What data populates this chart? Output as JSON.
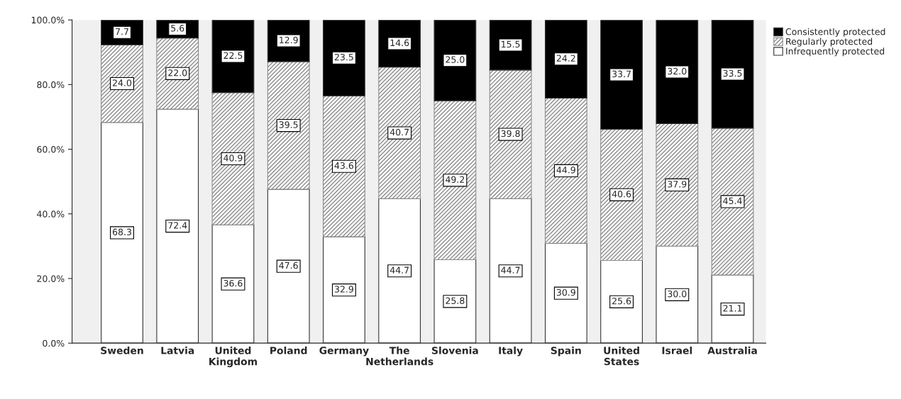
{
  "chart_data": {
    "type": "bar",
    "stacked": true,
    "legend": "top right",
    "grid": false,
    "categories": [
      "Sweden",
      "Latvia",
      "United\nKingdom",
      "Poland",
      "Germany",
      "The\nNetherlands",
      "Slovenia",
      "Italy",
      "Spain",
      "United\nStates",
      "Israel",
      "Australia"
    ],
    "series": [
      {
        "name": "Infrequently protected",
        "color": "#ffffff",
        "values": [
          68.3,
          72.4,
          36.6,
          47.6,
          32.9,
          44.7,
          25.8,
          44.7,
          30.9,
          25.6,
          30.0,
          21.1
        ],
        "value_labels": [
          "68.3",
          "72.4",
          "36.6",
          "47.6",
          "32.9",
          "44.7",
          "25.8",
          "44.7",
          "30.9",
          "25.6",
          "30.0",
          "21.1"
        ]
      },
      {
        "name": "Regularly protected",
        "color": "#8c8c8c",
        "values": [
          24.0,
          22.0,
          40.9,
          39.5,
          43.6,
          40.7,
          49.2,
          39.8,
          44.9,
          40.6,
          37.9,
          45.4
        ],
        "value_labels": [
          "24.0",
          "22.0",
          "40.9",
          "39.5",
          "43.6",
          "40.7",
          "49.2",
          "39.8",
          "44.9",
          "40.6",
          "37.9",
          "45.4"
        ]
      },
      {
        "name": "Consistently protected",
        "color": "#000000",
        "values": [
          7.7,
          5.6,
          22.5,
          12.9,
          23.5,
          14.6,
          25.0,
          15.5,
          24.2,
          33.7,
          32.0,
          33.5
        ],
        "value_labels": [
          "7.7",
          "5.6",
          "22.5",
          "12.9",
          "23.5",
          "14.6",
          "25.0",
          "15.5",
          "24.2",
          "33.7",
          "32.0",
          "33.5"
        ]
      }
    ],
    "ylim": [
      0,
      100
    ],
    "yticks": [
      {
        "value": 0,
        "label": "0.0%"
      },
      {
        "value": 20,
        "label": "20.0%"
      },
      {
        "value": 40,
        "label": "40.0%"
      },
      {
        "value": 60,
        "label": "60.0%"
      },
      {
        "value": 80,
        "label": "80.0%"
      },
      {
        "value": 100,
        "label": "100.0%"
      }
    ]
  }
}
